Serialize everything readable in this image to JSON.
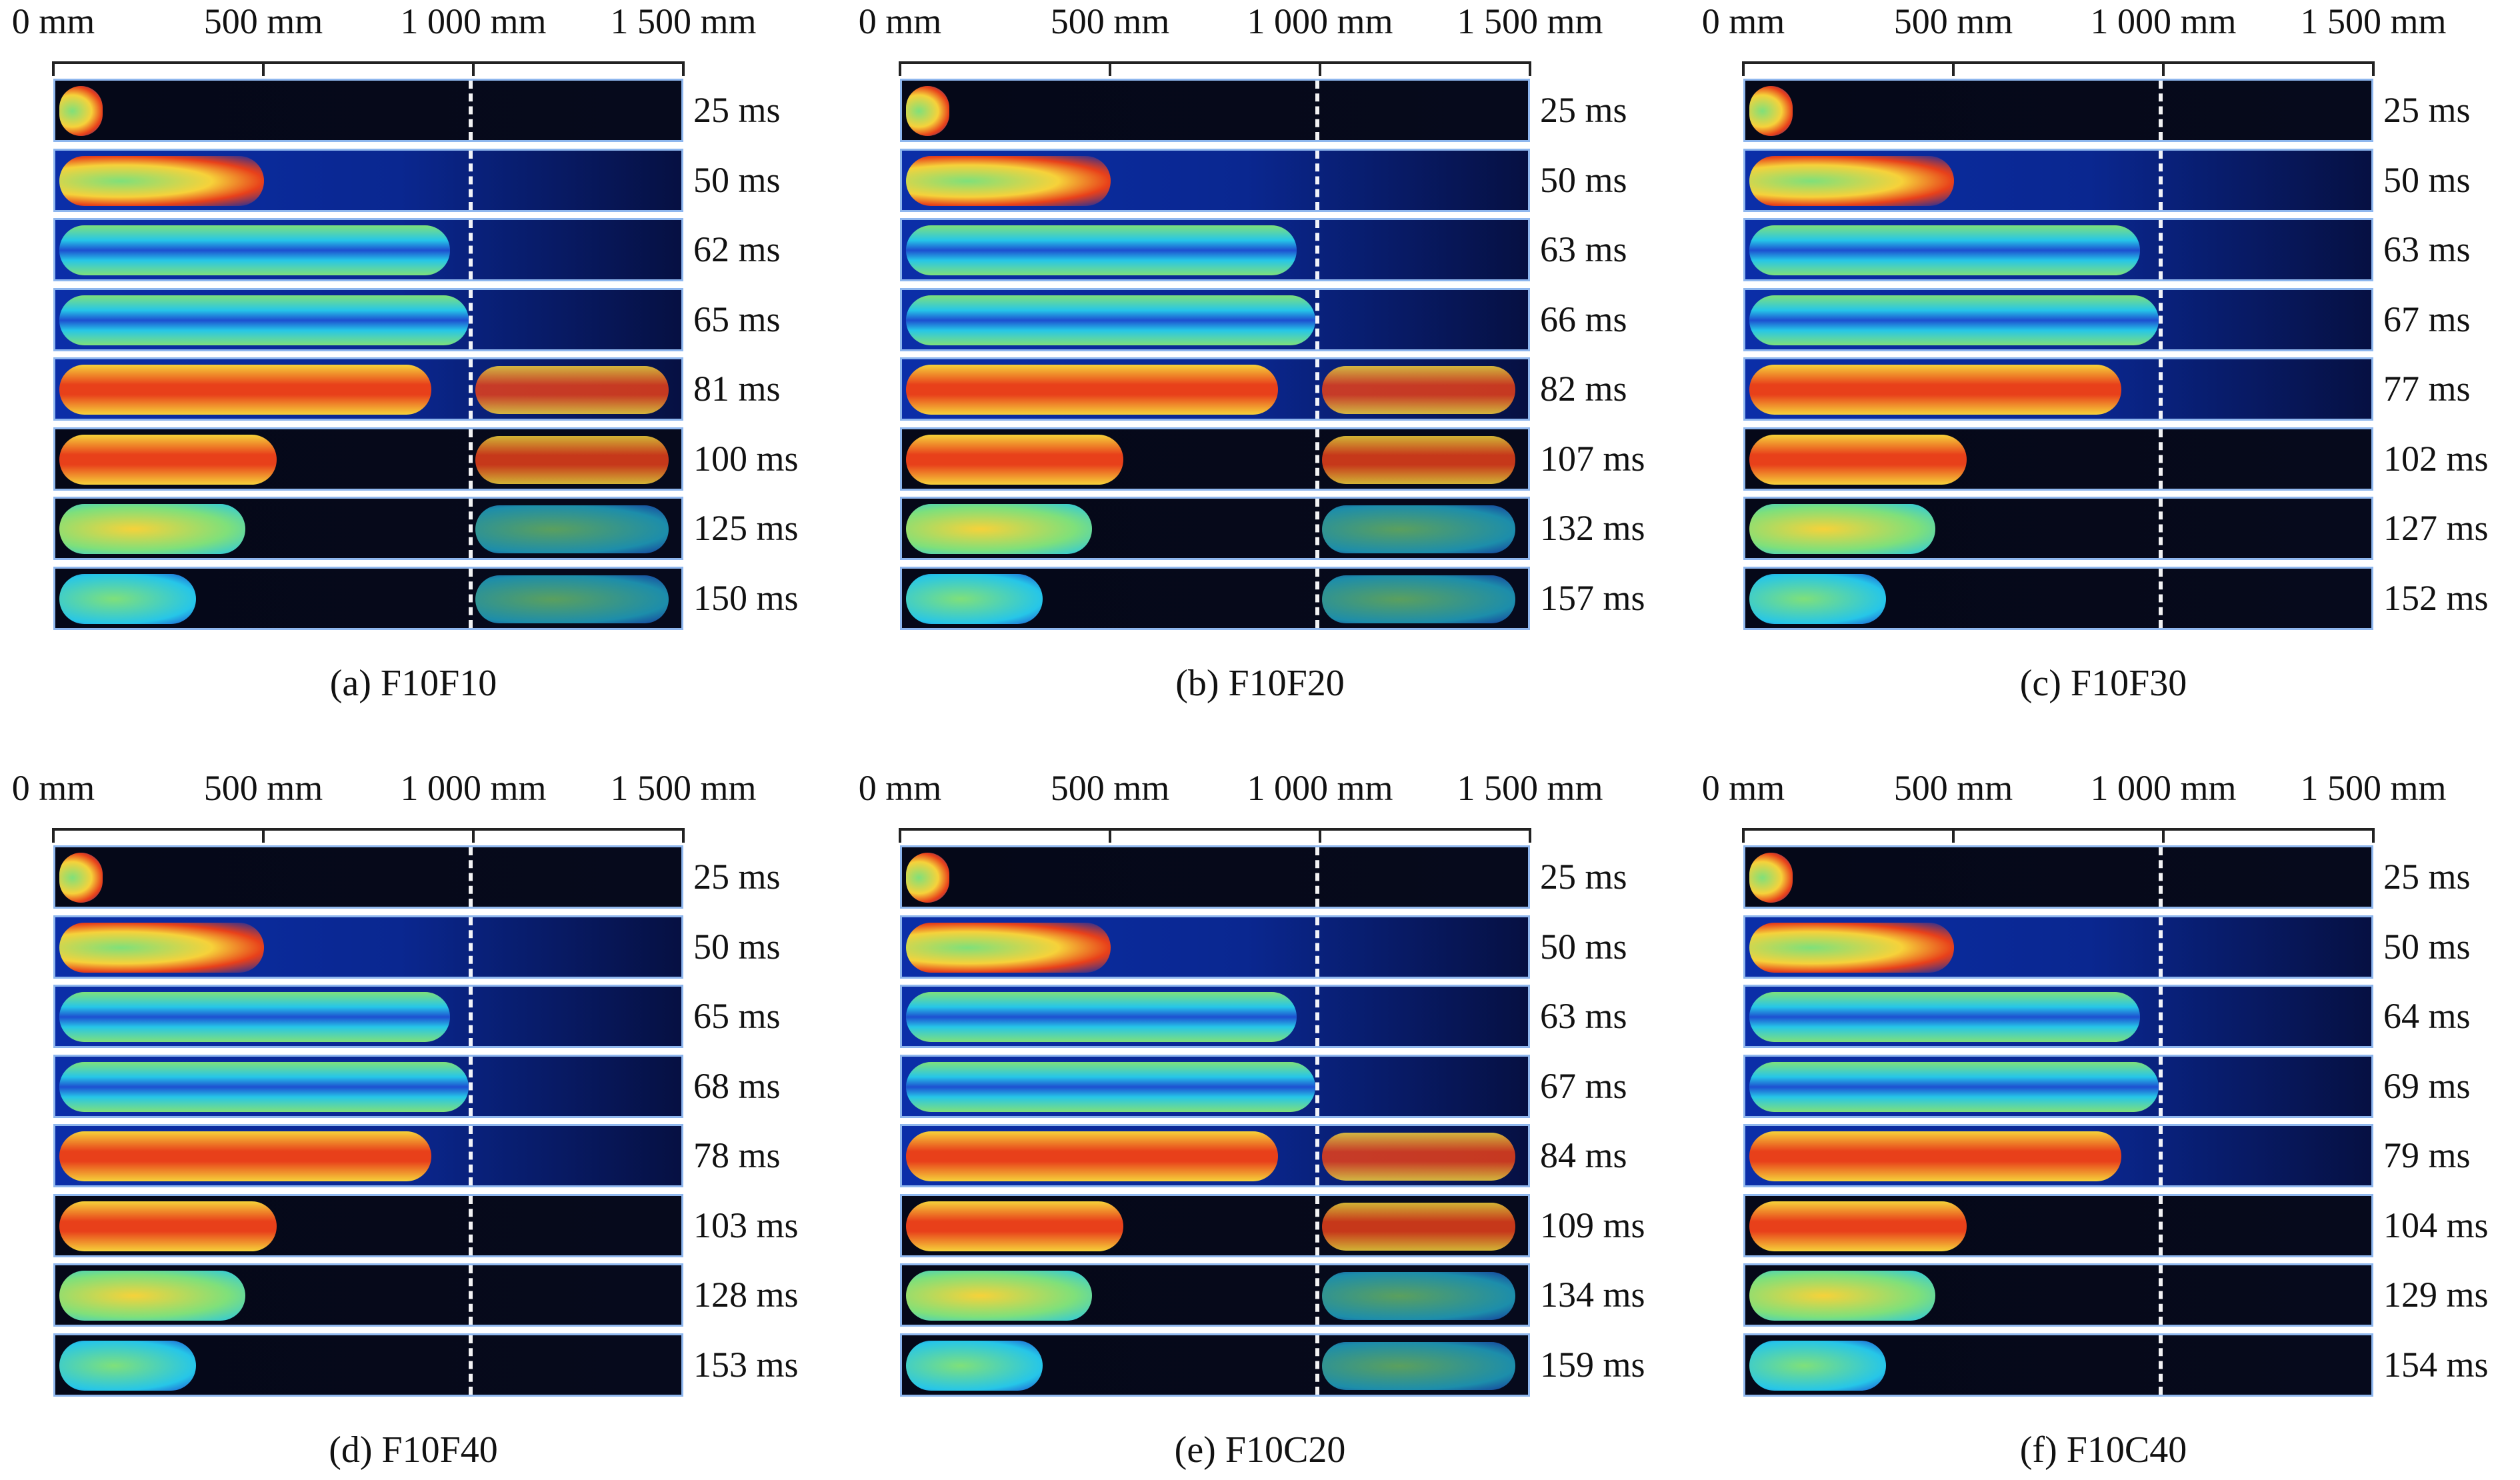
{
  "axis_ticks": [
    "0 mm",
    "500 mm",
    "1 000 mm",
    "1 500 mm"
  ],
  "panels": [
    {
      "caption": "(a) F10F10",
      "times": [
        "25 ms",
        "50 ms",
        "62 ms",
        "65 ms",
        "81 ms",
        "100 ms",
        "125 ms",
        "150 ms"
      ]
    },
    {
      "caption": "(b) F10F20",
      "times": [
        "25 ms",
        "50 ms",
        "63 ms",
        "66 ms",
        "82 ms",
        "107 ms",
        "132 ms",
        "157 ms"
      ]
    },
    {
      "caption": "(c) F10F30",
      "times": [
        "25 ms",
        "50 ms",
        "63 ms",
        "67 ms",
        "77 ms",
        "102 ms",
        "127 ms",
        "152 ms"
      ]
    },
    {
      "caption": "(d) F10F40",
      "times": [
        "25 ms",
        "50 ms",
        "65 ms",
        "68 ms",
        "78 ms",
        "103 ms",
        "128 ms",
        "153 ms"
      ]
    },
    {
      "caption": "(e) F10C20",
      "times": [
        "25 ms",
        "50 ms",
        "63 ms",
        "67 ms",
        "84 ms",
        "109 ms",
        "134 ms",
        "159 ms"
      ]
    },
    {
      "caption": "(f) F10C40",
      "times": [
        "25 ms",
        "50 ms",
        "64 ms",
        "69 ms",
        "79 ms",
        "104 ms",
        "129 ms",
        "154 ms"
      ]
    }
  ],
  "colors": {
    "frame_dark": "#050818",
    "frame_blue": "#0b2ea8",
    "flame_hot": "#e8401a",
    "flame_warm": "#f6d23a",
    "flame_mid": "#7fe07a",
    "flame_cool": "#26c6e8",
    "frame_border": "#8fb7ee"
  }
}
